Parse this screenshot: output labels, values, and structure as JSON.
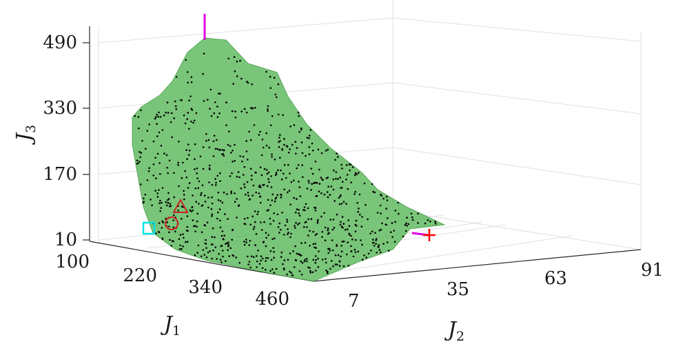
{
  "chart_data": {
    "type": "scatter",
    "title": "",
    "axes": {
      "x": {
        "label": "J",
        "subscript": "1",
        "ticks": [
          100,
          220,
          340,
          460
        ],
        "range": [
          100,
          460
        ]
      },
      "y": {
        "label": "J",
        "subscript": "2",
        "ticks": [
          7,
          35,
          63,
          91
        ],
        "range": [
          7,
          91
        ]
      },
      "z": {
        "label": "J",
        "subscript": "3",
        "ticks": [
          10,
          170,
          330,
          490
        ],
        "range": [
          10,
          490
        ]
      }
    },
    "grid": true,
    "surface": {
      "color": "#5cb85c",
      "opacity": 0.8,
      "description": "Pareto front approximation"
    },
    "points_color": "#000000",
    "markers": [
      {
        "shape": "square",
        "color": "#00e5e5",
        "label": ""
      },
      {
        "shape": "circle",
        "color": "#cc2222",
        "label": ""
      },
      {
        "shape": "triangle",
        "color": "#cc2222",
        "label": ""
      },
      {
        "shape": "plus",
        "color": "#ff0000",
        "label": ""
      },
      {
        "shape": "vertical-line",
        "color": "#e000e0",
        "label": ""
      }
    ]
  }
}
